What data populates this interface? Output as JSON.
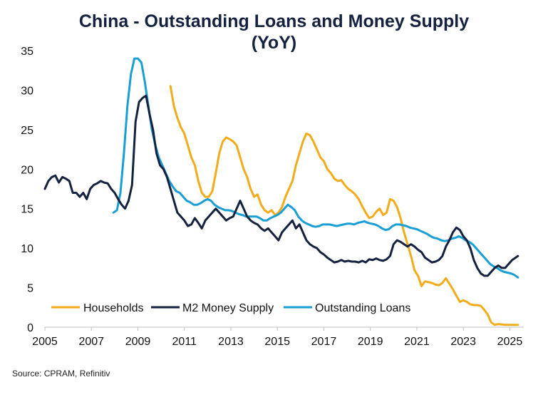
{
  "chart_data": {
    "type": "line",
    "title_line1": "China - Outstanding Loans and Money Supply",
    "title_line2": "(YoY)",
    "xlabel": "",
    "ylabel": "",
    "xlim": [
      2005,
      2025.6
    ],
    "ylim": [
      0,
      35
    ],
    "x_ticks": [
      "2005",
      "2007",
      "2009",
      "2011",
      "2013",
      "2015",
      "2017",
      "2019",
      "2021",
      "2023",
      "2025"
    ],
    "y_ticks": [
      "0",
      "5",
      "10",
      "15",
      "20",
      "25",
      "30",
      "35"
    ],
    "gridlines": false,
    "legend_position": "bottom",
    "series": [
      {
        "name": "Households",
        "color": "#f2ac1b",
        "x": [
          2010.4,
          2010.55,
          2010.7,
          2010.85,
          2011.0,
          2011.15,
          2011.3,
          2011.45,
          2011.6,
          2011.75,
          2011.9,
          2012.05,
          2012.2,
          2012.35,
          2012.5,
          2012.65,
          2012.8,
          2012.95,
          2013.1,
          2013.25,
          2013.4,
          2013.55,
          2013.7,
          2013.85,
          2014.0,
          2014.15,
          2014.3,
          2014.45,
          2014.6,
          2014.75,
          2014.9,
          2015.05,
          2015.2,
          2015.35,
          2015.5,
          2015.65,
          2015.8,
          2015.95,
          2016.1,
          2016.25,
          2016.4,
          2016.55,
          2016.7,
          2016.85,
          2017.0,
          2017.15,
          2017.3,
          2017.45,
          2017.6,
          2017.75,
          2017.9,
          2018.05,
          2018.2,
          2018.35,
          2018.5,
          2018.65,
          2018.8,
          2018.95,
          2019.1,
          2019.25,
          2019.4,
          2019.55,
          2019.7,
          2019.85,
          2020.0,
          2020.15,
          2020.3,
          2020.45,
          2020.6,
          2020.75,
          2020.9,
          2021.05,
          2021.2,
          2021.35,
          2021.5,
          2021.65,
          2021.8,
          2021.95,
          2022.1,
          2022.25,
          2022.4,
          2022.55,
          2022.7,
          2022.85,
          2023.0,
          2023.15,
          2023.3,
          2023.45,
          2023.6,
          2023.75,
          2023.9,
          2024.05,
          2024.2,
          2024.35,
          2024.5,
          2024.65,
          2024.8,
          2024.95,
          2025.1,
          2025.25,
          2025.35
        ],
        "values": [
          30.5,
          28,
          26.5,
          25.3,
          24.5,
          23,
          21.5,
          20.5,
          18.5,
          17,
          16.5,
          16.5,
          17.2,
          19.5,
          22,
          23.5,
          24,
          23.8,
          23.5,
          23,
          21.5,
          20,
          19,
          17.5,
          16.5,
          16.8,
          15.5,
          14.8,
          14.5,
          14.8,
          14.2,
          14.5,
          15.2,
          16.5,
          17.5,
          18.5,
          20.5,
          22,
          23.5,
          24.5,
          24.3,
          23.5,
          22.5,
          21.5,
          21,
          20,
          19.5,
          18.8,
          18.5,
          18.6,
          18,
          17.5,
          17.2,
          16.8,
          16.2,
          15.3,
          14.5,
          13.8,
          14,
          14.6,
          15,
          14.2,
          14.5,
          16.2,
          16,
          15.2,
          13.8,
          12,
          10.5,
          9,
          7.2,
          6.5,
          5.2,
          5.8,
          5.7,
          5.6,
          5.4,
          5.3,
          5.6,
          6.2,
          5.5,
          4.8,
          4,
          3.2,
          3.4,
          3.2,
          2.9,
          2.8,
          2.8,
          2.7,
          2.2,
          1.6,
          0.6,
          0.3,
          0.4,
          0.35,
          0.3,
          0.3,
          0.3,
          0.3,
          0.3
        ]
      },
      {
        "name": "M2 Money Supply",
        "color": "#14213f",
        "x": [
          2005.0,
          2005.15,
          2005.3,
          2005.45,
          2005.6,
          2005.75,
          2005.9,
          2006.05,
          2006.2,
          2006.35,
          2006.5,
          2006.65,
          2006.8,
          2006.95,
          2007.1,
          2007.25,
          2007.4,
          2007.55,
          2007.7,
          2007.85,
          2008.0,
          2008.15,
          2008.3,
          2008.45,
          2008.6,
          2008.75,
          2008.9,
          2009.05,
          2009.2,
          2009.35,
          2009.5,
          2009.65,
          2009.8,
          2009.95,
          2010.1,
          2010.25,
          2010.4,
          2010.55,
          2010.7,
          2010.85,
          2011.0,
          2011.15,
          2011.3,
          2011.45,
          2011.6,
          2011.75,
          2011.9,
          2012.05,
          2012.2,
          2012.35,
          2012.5,
          2012.65,
          2012.8,
          2012.95,
          2013.1,
          2013.25,
          2013.4,
          2013.55,
          2013.7,
          2013.85,
          2014.0,
          2014.15,
          2014.3,
          2014.45,
          2014.6,
          2014.75,
          2014.9,
          2015.05,
          2015.2,
          2015.35,
          2015.5,
          2015.65,
          2015.8,
          2015.95,
          2016.1,
          2016.25,
          2016.4,
          2016.55,
          2016.7,
          2016.85,
          2017.0,
          2017.15,
          2017.3,
          2017.45,
          2017.6,
          2017.75,
          2017.9,
          2018.05,
          2018.2,
          2018.35,
          2018.5,
          2018.65,
          2018.8,
          2018.95,
          2019.1,
          2019.25,
          2019.4,
          2019.55,
          2019.7,
          2019.85,
          2020.0,
          2020.15,
          2020.3,
          2020.45,
          2020.6,
          2020.75,
          2020.9,
          2021.05,
          2021.2,
          2021.35,
          2021.5,
          2021.65,
          2021.8,
          2021.95,
          2022.1,
          2022.25,
          2022.4,
          2022.55,
          2022.7,
          2022.85,
          2023.0,
          2023.15,
          2023.3,
          2023.45,
          2023.6,
          2023.75,
          2023.9,
          2024.05,
          2024.2,
          2024.35,
          2024.5,
          2024.65,
          2024.8,
          2024.95,
          2025.1,
          2025.25,
          2025.35
        ],
        "values": [
          17.5,
          18.5,
          19,
          19.2,
          18.3,
          19,
          18.8,
          18.5,
          17,
          17,
          16.5,
          17,
          16.2,
          17.5,
          18,
          18.2,
          18.5,
          18.3,
          18.2,
          17.5,
          17,
          16.2,
          15.5,
          15,
          16,
          18,
          26,
          28.5,
          29,
          29.3,
          27,
          25,
          22,
          20.5,
          20,
          19,
          17.5,
          16,
          14.5,
          14,
          13.5,
          12.8,
          13,
          13.8,
          13.2,
          12.5,
          13.5,
          14,
          14.5,
          15,
          14.5,
          14,
          13.5,
          13.8,
          14,
          15,
          16,
          15,
          14,
          13.5,
          13.2,
          13,
          12.5,
          12.2,
          12.5,
          12,
          11.5,
          11,
          12,
          12.5,
          13,
          13.5,
          12.5,
          13,
          12,
          11,
          10.5,
          10.2,
          10,
          9.5,
          9.2,
          8.8,
          8.5,
          8.2,
          8.3,
          8.5,
          8.3,
          8.4,
          8.3,
          8.3,
          8.2,
          8.4,
          8.2,
          8.6,
          8.5,
          8.7,
          8.5,
          8.4,
          8.6,
          9,
          10.5,
          11,
          10.8,
          10.5,
          10.2,
          10.5,
          10.2,
          9.8,
          9.5,
          8.8,
          8.5,
          8.2,
          8.3,
          8.5,
          9,
          10.2,
          11,
          12,
          12.6,
          12.3,
          11.5,
          11,
          10,
          8.5,
          7.5,
          6.8,
          6.5,
          6.5,
          7,
          7.5,
          7.8,
          7.5,
          7.5,
          8,
          8.5,
          8.8,
          9
        ],
        "end_extra": "none"
      },
      {
        "name": "Outstanding Loans",
        "color": "#1a9fd5",
        "x": [
          2007.95,
          2008.1,
          2008.25,
          2008.4,
          2008.55,
          2008.7,
          2008.85,
          2009.0,
          2009.15,
          2009.3,
          2009.45,
          2009.6,
          2009.75,
          2009.9,
          2010.05,
          2010.2,
          2010.35,
          2010.5,
          2010.65,
          2010.8,
          2010.95,
          2011.1,
          2011.25,
          2011.4,
          2011.55,
          2011.7,
          2011.85,
          2012.0,
          2012.15,
          2012.3,
          2012.45,
          2012.6,
          2012.75,
          2012.9,
          2013.05,
          2013.2,
          2013.35,
          2013.5,
          2013.65,
          2013.8,
          2013.95,
          2014.1,
          2014.25,
          2014.4,
          2014.55,
          2014.7,
          2014.85,
          2015.0,
          2015.15,
          2015.3,
          2015.45,
          2015.6,
          2015.75,
          2015.9,
          2016.05,
          2016.2,
          2016.35,
          2016.5,
          2016.65,
          2016.8,
          2016.95,
          2017.1,
          2017.25,
          2017.4,
          2017.55,
          2017.7,
          2017.85,
          2018.0,
          2018.15,
          2018.3,
          2018.45,
          2018.6,
          2018.75,
          2018.9,
          2019.05,
          2019.2,
          2019.35,
          2019.5,
          2019.65,
          2019.8,
          2019.95,
          2020.1,
          2020.25,
          2020.4,
          2020.55,
          2020.7,
          2020.85,
          2021.0,
          2021.15,
          2021.3,
          2021.45,
          2021.6,
          2021.75,
          2021.9,
          2022.05,
          2022.2,
          2022.35,
          2022.5,
          2022.65,
          2022.8,
          2022.95,
          2023.1,
          2023.25,
          2023.4,
          2023.55,
          2023.7,
          2023.85,
          2024.0,
          2024.15,
          2024.3,
          2024.45,
          2024.6,
          2024.75,
          2024.9,
          2025.05,
          2025.2,
          2025.35
        ],
        "values": [
          14.5,
          14.8,
          17,
          22,
          28,
          32,
          34,
          34,
          33.5,
          31,
          28,
          25,
          23,
          21.5,
          20.5,
          19.5,
          18.5,
          17.8,
          17.2,
          17,
          16.5,
          16,
          15.8,
          15.5,
          15.5,
          15.7,
          16,
          16.2,
          16,
          15.5,
          15.2,
          15,
          14.8,
          14.8,
          14.7,
          14.5,
          14.3,
          14.2,
          14,
          14,
          14,
          14,
          13.8,
          13.5,
          13.5,
          13.8,
          14,
          14.2,
          14.5,
          15,
          15.5,
          15.2,
          14.8,
          14,
          13.5,
          13.2,
          13,
          12.8,
          12.7,
          12.8,
          13,
          13,
          13,
          12.9,
          12.8,
          12.9,
          13,
          13.1,
          13.1,
          13,
          13.2,
          13.3,
          13.4,
          13.2,
          13.1,
          13,
          12.8,
          12.5,
          12.3,
          12.4,
          12.8,
          13,
          13,
          12.9,
          12.8,
          12.6,
          12.5,
          12.4,
          12.2,
          12,
          11.8,
          11.5,
          11.3,
          11.2,
          11,
          10.9,
          11,
          11.2,
          11.3,
          11.5,
          11.3,
          11,
          10.8,
          10.5,
          10,
          9.5,
          9,
          8.5,
          8,
          7.7,
          7.5,
          7.2,
          7,
          6.9,
          6.8,
          6.6,
          6.3
        ]
      }
    ]
  },
  "source_text": "Source: CPRAM, Refinitiv"
}
